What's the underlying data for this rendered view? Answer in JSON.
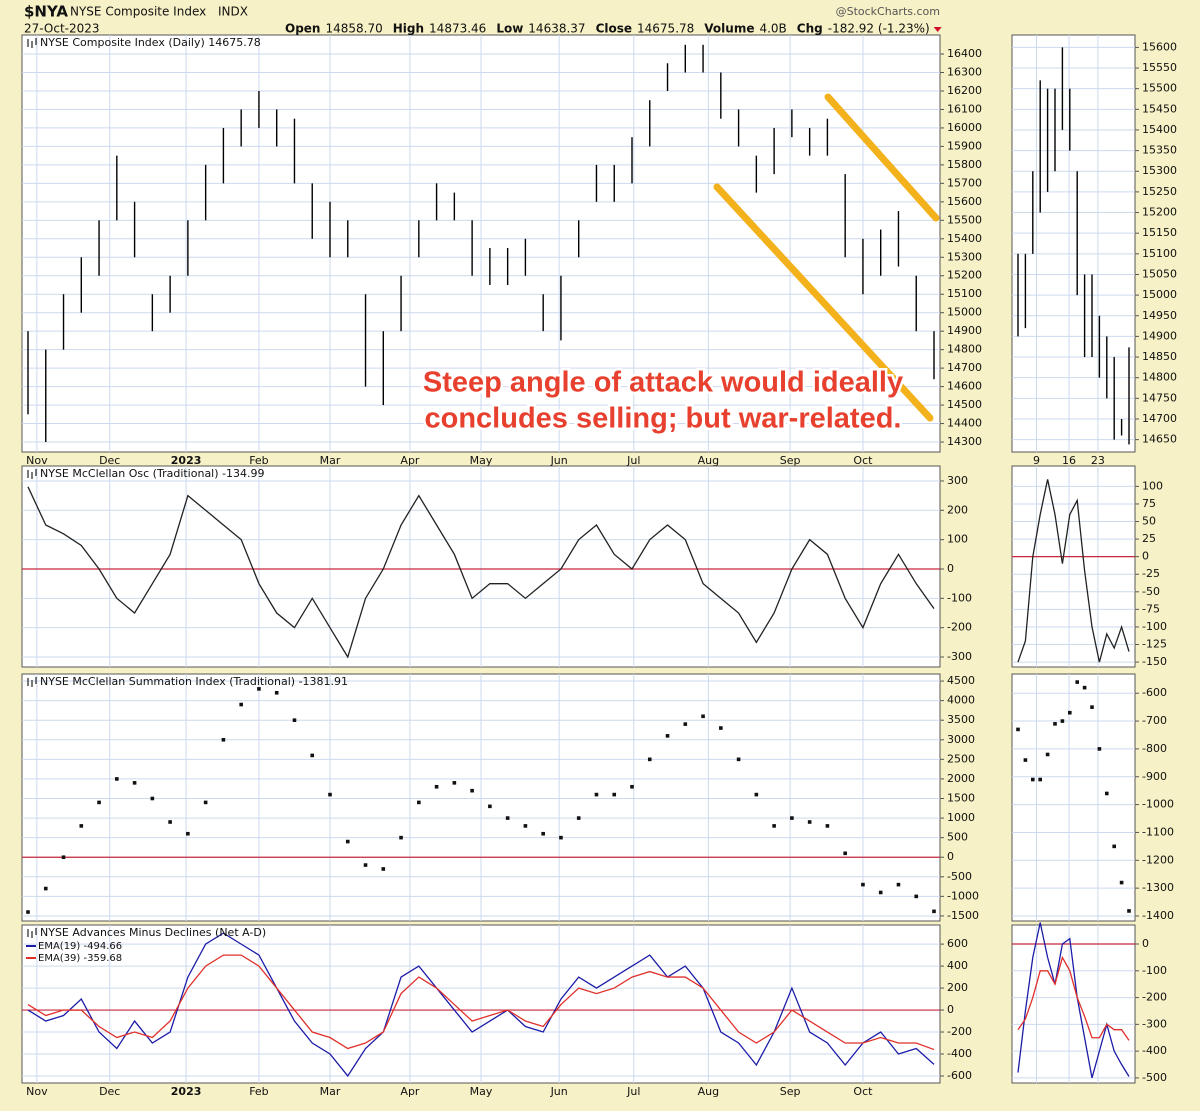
{
  "header": {
    "symbol": "$NYA",
    "name": "NYSE Composite Index",
    "exchange": "INDX",
    "date": "27-Oct-2023",
    "watermark": "@StockCharts.com",
    "quote": [
      [
        "Open",
        "14858.70"
      ],
      [
        "High",
        "14873.46"
      ],
      [
        "Low",
        "14638.37"
      ],
      [
        "Close",
        "14675.78"
      ],
      [
        "Volume",
        "4.0B"
      ],
      [
        "Chg",
        "-182.92 (-1.23%)"
      ]
    ]
  },
  "chart_data": [
    {
      "type": "range",
      "title": "NYSE Composite Index (Daily) 14675.78",
      "annotation": [
        "Steep angle of attack would ideally",
        "concludes selling; but war-related."
      ],
      "high": [
        14900,
        14800,
        15100,
        15300,
        15500,
        15850,
        15600,
        15100,
        15200,
        15500,
        15800,
        16000,
        16100,
        16200,
        16100,
        16050,
        15700,
        15600,
        15500,
        15100,
        14900,
        15200,
        15500,
        15700,
        15650,
        15500,
        15350,
        15350,
        15400,
        15100,
        15200,
        15500,
        15800,
        15800,
        15950,
        16150,
        16350,
        16450,
        16450,
        16300,
        16100,
        15850,
        16000,
        16100,
        16000,
        16050,
        15750,
        15400,
        15450,
        15550,
        15200,
        14900
      ],
      "low": [
        14450,
        14300,
        14800,
        15000,
        15200,
        15500,
        15300,
        14900,
        15000,
        15200,
        15500,
        15700,
        15900,
        16000,
        15900,
        15700,
        15400,
        15300,
        15300,
        14600,
        14500,
        14900,
        15300,
        15500,
        15500,
        15200,
        15150,
        15150,
        15200,
        14900,
        14850,
        15300,
        15600,
        15600,
        15700,
        15900,
        16200,
        16300,
        16300,
        16050,
        15900,
        15650,
        15750,
        15950,
        15850,
        15850,
        15300,
        15100,
        15200,
        15250,
        14900,
        14640
      ],
      "color": "#000000",
      "ylim": [
        14246,
        16503
      ],
      "yticks": [
        14300,
        14400,
        14500,
        14600,
        14700,
        14800,
        14900,
        15000,
        15100,
        15200,
        15300,
        15400,
        15500,
        15600,
        15700,
        15800,
        15900,
        16000,
        16100,
        16200,
        16300,
        16400
      ],
      "xticks": [
        {
          "value": 0.5,
          "label": "Nov"
        },
        {
          "value": 4.6,
          "label": "Dec"
        },
        {
          "value": 8.9,
          "label": "2023"
        },
        {
          "value": 13.0,
          "label": "Feb"
        },
        {
          "value": 17.0,
          "label": "Mar"
        },
        {
          "value": 21.5,
          "label": "Apr"
        },
        {
          "value": 25.5,
          "label": "May"
        },
        {
          "value": 29.9,
          "label": "Jun"
        },
        {
          "value": 34.1,
          "label": "Jul"
        },
        {
          "value": 38.3,
          "label": "Aug"
        },
        {
          "value": 42.9,
          "label": "Sep"
        },
        {
          "value": 47.0,
          "label": "Oct"
        }
      ],
      "grid": true
    },
    {
      "type": "range",
      "high": [
        15100,
        15100,
        15300,
        15520,
        15500,
        15500,
        15600,
        15500,
        15300,
        15050,
        15050,
        14950,
        14900,
        14850,
        14700,
        14873.46
      ],
      "low": [
        14900,
        14920,
        15100,
        15200,
        15250,
        15300,
        15400,
        15350,
        15000,
        14850,
        14850,
        14800,
        14750,
        14650,
        14660,
        14638.37
      ],
      "color": "#000000",
      "ylim": [
        14620,
        15630
      ],
      "yticks": [
        14650,
        14700,
        14750,
        14800,
        14850,
        14900,
        14950,
        15000,
        15050,
        15100,
        15150,
        15200,
        15250,
        15300,
        15350,
        15400,
        15450,
        15500,
        15550,
        15600
      ],
      "xticks": [
        {
          "value": 2.5,
          "label": "9"
        },
        {
          "value": 6.9,
          "label": "16"
        },
        {
          "value": 10.8,
          "label": "23"
        }
      ],
      "grid": true
    },
    {
      "type": "line",
      "title": "NYSE McClellan Osc (Traditional) -134.99",
      "values": [
        280,
        150,
        120,
        80,
        0,
        -100,
        -150,
        -50,
        50,
        250,
        200,
        150,
        100,
        -50,
        -150,
        -200,
        -100,
        -200,
        -300,
        -100,
        0,
        150,
        250,
        150,
        50,
        -100,
        -50,
        -50,
        -100,
        -50,
        0,
        100,
        150,
        50,
        0,
        100,
        150,
        100,
        -50,
        -100,
        -150,
        -250,
        -150,
        0,
        100,
        50,
        -100,
        -200,
        -50,
        50,
        -50,
        -134.99
      ],
      "color": "#222222",
      "ylim": [
        -334,
        351
      ],
      "yticks": [
        -300,
        -200,
        -100,
        0,
        100,
        200,
        300
      ],
      "hline": 0,
      "grid": true
    },
    {
      "type": "line",
      "values": [
        -150,
        -120,
        0,
        60,
        110,
        60,
        -10,
        60,
        80,
        -20,
        -100,
        -150,
        -110,
        -130,
        -100,
        -134.99
      ],
      "color": "#222222",
      "ylim": [
        -157,
        129
      ],
      "yticks": [
        -150,
        -125,
        -100,
        -75,
        -50,
        -25,
        0,
        25,
        50,
        75,
        100
      ],
      "hline": 0,
      "grid": true
    },
    {
      "type": "dot",
      "title": "NYSE McClellan Summation Index (Traditional) -1381.91",
      "values": [
        -1400,
        -800,
        0,
        800,
        1400,
        2000,
        1900,
        1500,
        900,
        600,
        1400,
        3000,
        3900,
        4300,
        4200,
        3500,
        2600,
        1600,
        400,
        -200,
        -300,
        500,
        1400,
        1800,
        1900,
        1700,
        1300,
        1000,
        800,
        600,
        500,
        1000,
        1600,
        1600,
        1800,
        2500,
        3100,
        3400,
        3600,
        3300,
        2500,
        1600,
        800,
        1000,
        900,
        800,
        100,
        -700,
        -900,
        -700,
        -1000,
        -1381.91
      ],
      "color": "#111111",
      "ylim": [
        -1629,
        4680
      ],
      "yticks": [
        -1500,
        -1000,
        -500,
        0,
        500,
        1000,
        1500,
        2000,
        2500,
        3000,
        3500,
        4000,
        4500
      ],
      "hline": 0,
      "grid": true
    },
    {
      "type": "dot",
      "values": [
        -730,
        -840,
        -910,
        -910,
        -820,
        -710,
        -700,
        -670,
        -560,
        -580,
        -650,
        -800,
        -960,
        -1150,
        -1280,
        -1381.91
      ],
      "color": "#111111",
      "ylim": [
        -1418,
        -531
      ],
      "yticks": [
        -1400,
        -1300,
        -1200,
        -1100,
        -1000,
        -900,
        -800,
        -700,
        -600
      ],
      "grid": true
    },
    {
      "type": "line",
      "title": "NYSE Advances Minus Declines (Net A-D)",
      "series": [
        {
          "name": "EMA(19) -494.66",
          "color": "#1c1ca8",
          "values": [
            0,
            -100,
            -50,
            100,
            -200,
            -350,
            -100,
            -300,
            -200,
            300,
            600,
            700,
            600,
            500,
            200,
            -100,
            -300,
            -400,
            -600,
            -350,
            -200,
            300,
            400,
            200,
            0,
            -200,
            -100,
            0,
            -150,
            -200,
            100,
            300,
            200,
            300,
            400,
            500,
            300,
            400,
            200,
            -200,
            -300,
            -500,
            -200,
            200,
            -200,
            -300,
            -500,
            -300,
            -200,
            -400,
            -350,
            -494.66
          ]
        },
        {
          "name": "EMA(39) -359.68",
          "color": "#e0302a",
          "values": [
            50,
            -50,
            0,
            0,
            -150,
            -250,
            -200,
            -250,
            -100,
            200,
            400,
            500,
            500,
            400,
            200,
            0,
            -200,
            -250,
            -350,
            -300,
            -200,
            150,
            300,
            200,
            50,
            -100,
            -50,
            0,
            -100,
            -150,
            50,
            200,
            150,
            200,
            300,
            350,
            300,
            300,
            200,
            0,
            -200,
            -300,
            -200,
            0,
            -100,
            -200,
            -300,
            -300,
            -250,
            -300,
            -300,
            -359.68
          ]
        }
      ],
      "ylim": [
        -664,
        774
      ],
      "yticks": [
        -600,
        -400,
        -200,
        0,
        200,
        400,
        600
      ],
      "hline": 0,
      "grid": true,
      "xticks": [
        {
          "value": 0.5,
          "label": "Nov"
        },
        {
          "value": 4.6,
          "label": "Dec"
        },
        {
          "value": 8.9,
          "label": "2023"
        },
        {
          "value": 13.0,
          "label": "Feb"
        },
        {
          "value": 17.0,
          "label": "Mar"
        },
        {
          "value": 21.5,
          "label": "Apr"
        },
        {
          "value": 25.5,
          "label": "May"
        },
        {
          "value": 29.9,
          "label": "Jun"
        },
        {
          "value": 34.1,
          "label": "Jul"
        },
        {
          "value": 38.3,
          "label": "Aug"
        },
        {
          "value": 42.9,
          "label": "Sep"
        },
        {
          "value": 47.0,
          "label": "Oct"
        }
      ]
    },
    {
      "type": "line",
      "series": [
        {
          "color": "#1c1ca8",
          "values": [
            -480,
            -250,
            -50,
            80,
            -50,
            -150,
            0,
            20,
            -200,
            -350,
            -500,
            -400,
            -300,
            -400,
            -450,
            -494.66
          ]
        },
        {
          "color": "#e0302a",
          "values": [
            -320,
            -280,
            -200,
            -100,
            -100,
            -150,
            -50,
            -100,
            -200,
            -270,
            -350,
            -350,
            -300,
            -320,
            -320,
            -359.68
          ]
        }
      ],
      "ylim": [
        -519,
        71
      ],
      "yticks": [
        -500,
        -400,
        -300,
        -200,
        -100,
        0
      ],
      "hline": 0,
      "grid": true
    }
  ]
}
